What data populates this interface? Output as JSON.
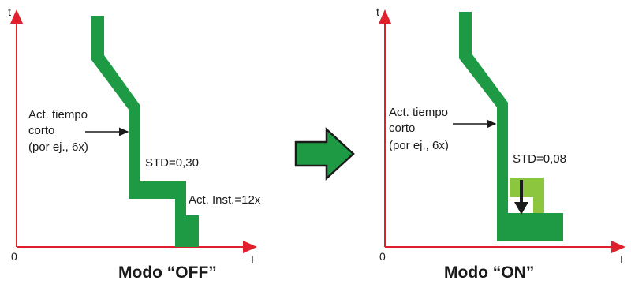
{
  "colors": {
    "axis": "#e0202c",
    "curve": "#1e9a45",
    "curve_light": "#8cc63f",
    "curve_outline": "#1e7a3a",
    "arrow_fill": "#1e9a45",
    "text": "#1a1a1a"
  },
  "panel_off": {
    "axis_t": "t",
    "axis_i": "I",
    "origin": "0",
    "label_short_time": [
      "Act. tiempo",
      "corto",
      "(por ej., 6x)"
    ],
    "label_std": "STD=0,30",
    "label_inst": "Act. Inst.=12x",
    "title": "Modo “OFF”"
  },
  "panel_on": {
    "axis_t": "t",
    "axis_i": "I",
    "origin": "0",
    "label_short_time": [
      "Act. tiempo",
      "corto",
      "(por ej., 6x)"
    ],
    "label_std": "STD=0,08",
    "title": "Modo “ON”"
  },
  "center_arrow": {
    "icon": "right-arrow-icon"
  }
}
